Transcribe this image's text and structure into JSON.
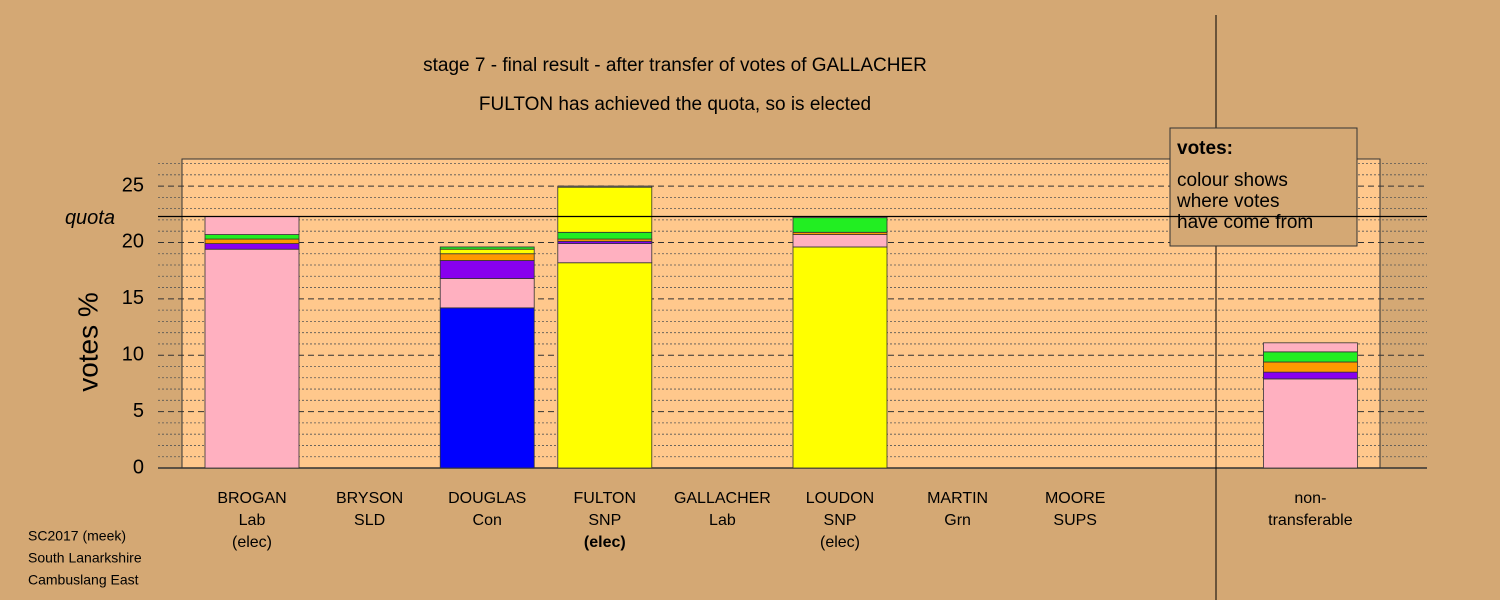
{
  "chart_data": {
    "type": "bar",
    "stacked": true,
    "title": "stage 7 - final result - after transfer of votes of GALLACHER",
    "subtitle": "FULTON has achieved the quota, so is elected",
    "y_label": "votes %",
    "ylim": [
      0,
      27.4
    ],
    "yticks": [
      0,
      5,
      10,
      15,
      20,
      25
    ],
    "minor_yticks": [
      1,
      2,
      3,
      4,
      6,
      7,
      8,
      9,
      11,
      12,
      13,
      14,
      16,
      17,
      18,
      19,
      21,
      22,
      23,
      24,
      26,
      27
    ],
    "quota": {
      "value": 22.3,
      "label": "quota"
    },
    "categories": [
      [
        "BROGAN",
        "Lab",
        "(elec)"
      ],
      [
        "BRYSON",
        "SLD"
      ],
      [
        "DOUGLAS",
        "Con"
      ],
      [
        "FULTON",
        "SNP",
        "(elec)"
      ],
      [
        "GALLACHER",
        "Lab"
      ],
      [
        "LOUDON",
        "SNP",
        "(elec)"
      ],
      [
        "MARTIN",
        "Grn"
      ],
      [
        "MOORE",
        "SUPS"
      ],
      [
        "non-",
        "transferable"
      ]
    ],
    "bold_label": {
      "category": 3,
      "line": 2
    },
    "values": [
      [
        19.4,
        0.5,
        0.4,
        0.4,
        1.6
      ],
      [],
      [
        14.2,
        2.6,
        1.6,
        0.6,
        0.4,
        0.2
      ],
      [
        18.2,
        1.7,
        0.2,
        0.2,
        0.6,
        4.0,
        0.1
      ],
      [],
      [
        19.6,
        1.1,
        0.2,
        1.3,
        0.1
      ],
      [],
      [],
      [
        7.9,
        0.6,
        0.9,
        0.9,
        0.8
      ]
    ],
    "colors": [
      [
        "#ffb0c0",
        "#8800ee",
        "#ff9900",
        "#22ee22",
        "#ffb0c0"
      ],
      [],
      [
        "#0000ff",
        "#ffb0c0",
        "#8800ee",
        "#ff9900",
        "#ffff00",
        "#22ee22"
      ],
      [
        "#ffff00",
        "#ffb0c0",
        "#8800ee",
        "#ff9900",
        "#22ee22",
        "#ffff00",
        "#999999"
      ],
      [],
      [
        "#ffff00",
        "#ffb0c0",
        "#ff9900",
        "#22ee22",
        "#ffb0c0"
      ],
      [],
      [],
      [
        "#ffb0c0",
        "#8800ee",
        "#ff9900",
        "#22ee22",
        "#ffb0c0"
      ]
    ],
    "legend": {
      "title": "votes:",
      "lines": [
        "colour shows",
        "where votes",
        "have come from"
      ]
    },
    "footer": [
      "SC2017 (meek)",
      "South Lanarkshire",
      "Cambuslang East"
    ]
  }
}
